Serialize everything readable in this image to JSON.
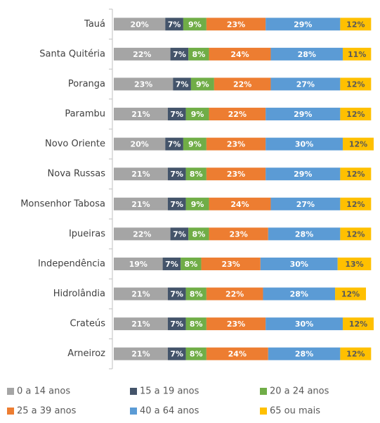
{
  "chart_data": {
    "type": "stacked_bar_horizontal",
    "categories": [
      "Tauá",
      "Santa Quitéria",
      "Poranga",
      "Parambu",
      "Novo Oriente",
      "Nova Russas",
      "Monsenhor Tabosa",
      "Ipueiras",
      "Independência",
      "Hidrolândia",
      "Crateús",
      "Arneiroz"
    ],
    "xlim": [
      0,
      101
    ],
    "legend": "bottom",
    "series": [
      {
        "name": "0 a 14 anos",
        "color": "#a5a5a5",
        "values": [
          20,
          22,
          23,
          21,
          20,
          21,
          21,
          22,
          19,
          21,
          21,
          21
        ],
        "value_labels": [
          "20%",
          "22%",
          "23%",
          "21%",
          "20%",
          "21%",
          "21%",
          "22%",
          "19%",
          "21%",
          "21%",
          "21%"
        ]
      },
      {
        "name": "15 a 19 anos",
        "color": "#44546a",
        "values": [
          7,
          7,
          7,
          7,
          7,
          7,
          7,
          7,
          7,
          7,
          7,
          7
        ],
        "value_labels": [
          "7%",
          "7%",
          "7%",
          "7%",
          "7%",
          "7%",
          "7%",
          "7%",
          "7%",
          "7%",
          "7%",
          "7%"
        ]
      },
      {
        "name": "20 a 24 anos",
        "color": "#70ad47",
        "values": [
          9,
          8,
          9,
          9,
          9,
          8,
          9,
          8,
          8,
          8,
          8,
          8
        ],
        "value_labels": [
          "9%",
          "8%",
          "9%",
          "9%",
          "9%",
          "8%",
          "9%",
          "8%",
          "8%",
          "8%",
          "8%",
          "8%"
        ]
      },
      {
        "name": "25 a 39 anos",
        "color": "#ed7d31",
        "values": [
          23,
          24,
          22,
          22,
          23,
          23,
          24,
          23,
          23,
          22,
          23,
          24
        ],
        "value_labels": [
          "23%",
          "24%",
          "22%",
          "22%",
          "23%",
          "23%",
          "24%",
          "23%",
          "23%",
          "22%",
          "23%",
          "24%"
        ]
      },
      {
        "name": "40 a 64 anos",
        "color": "#5b9bd5",
        "values": [
          29,
          28,
          27,
          29,
          30,
          29,
          27,
          28,
          30,
          28,
          30,
          28
        ],
        "value_labels": [
          "29%",
          "28%",
          "27%",
          "29%",
          "30%",
          "29%",
          "27%",
          "28%",
          "30%",
          "28%",
          "30%",
          "28%"
        ]
      },
      {
        "name": "65 ou mais",
        "color": "#ffc000",
        "values": [
          12,
          11,
          12,
          12,
          12,
          12,
          12,
          12,
          13,
          12,
          12,
          12
        ],
        "value_labels": [
          "12%",
          "11%",
          "12%",
          "12%",
          "12%",
          "12%",
          "12%",
          "12%",
          "13%",
          "12%",
          "12%",
          "12%"
        ]
      }
    ]
  }
}
